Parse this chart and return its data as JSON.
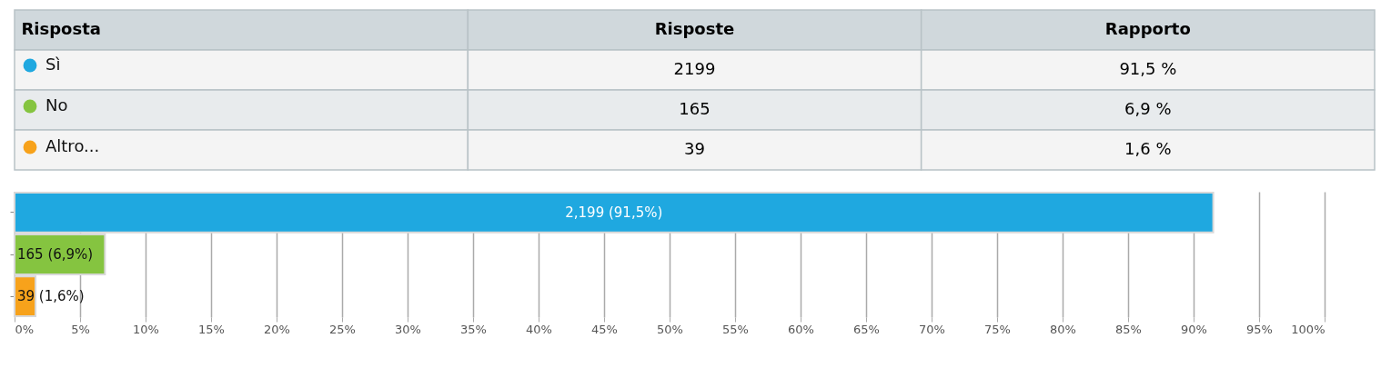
{
  "chart_data": {
    "type": "bar",
    "orientation": "horizontal",
    "categories": [
      null,
      null,
      null
    ],
    "series": [
      {
        "name": "Sì",
        "color": "#1fa8e0",
        "values": [
          91.5,
          null,
          null
        ],
        "value_labels": [
          "2,199 (91,5%)",
          null,
          null
        ]
      },
      {
        "name": "No",
        "color": "#85c440",
        "values": [
          null,
          6.9,
          null
        ],
        "value_labels": [
          null,
          "165 (6,9%)",
          null
        ]
      },
      {
        "name": "Altro...",
        "color": "#f7a21b",
        "values": [
          null,
          null,
          1.6
        ],
        "value_labels": [
          null,
          null,
          "39 (1,6%)"
        ]
      }
    ],
    "annotations": [
      "Risposta",
      "Risposte",
      "Rapporto",
      "2199",
      "91,5 %",
      "165",
      "6,9 %",
      "39",
      "1,6 %"
    ],
    "xlim": [
      0,
      100
    ],
    "xticks": [
      {
        "value": 0,
        "label": "0%"
      },
      {
        "value": 5,
        "label": "5%"
      },
      {
        "value": 10,
        "label": "10%"
      },
      {
        "value": 15,
        "label": "15%"
      },
      {
        "value": 20,
        "label": "20%"
      },
      {
        "value": 25,
        "label": "25%"
      },
      {
        "value": 30,
        "label": "30%"
      },
      {
        "value": 35,
        "label": "35%"
      },
      {
        "value": 40,
        "label": "40%"
      },
      {
        "value": 45,
        "label": "45%"
      },
      {
        "value": 50,
        "label": "50%"
      },
      {
        "value": 55,
        "label": "55%"
      },
      {
        "value": 60,
        "label": "60%"
      },
      {
        "value": 65,
        "label": "65%"
      },
      {
        "value": 70,
        "label": "70%"
      },
      {
        "value": 75,
        "label": "75%"
      },
      {
        "value": 80,
        "label": "80%"
      },
      {
        "value": 85,
        "label": "85%"
      },
      {
        "value": 90,
        "label": "90%"
      },
      {
        "value": 95,
        "label": "95%"
      },
      {
        "value": 100,
        "label": "100%"
      }
    ],
    "grid": "x",
    "tick_labels": "x",
    "legend": "top left"
  }
}
